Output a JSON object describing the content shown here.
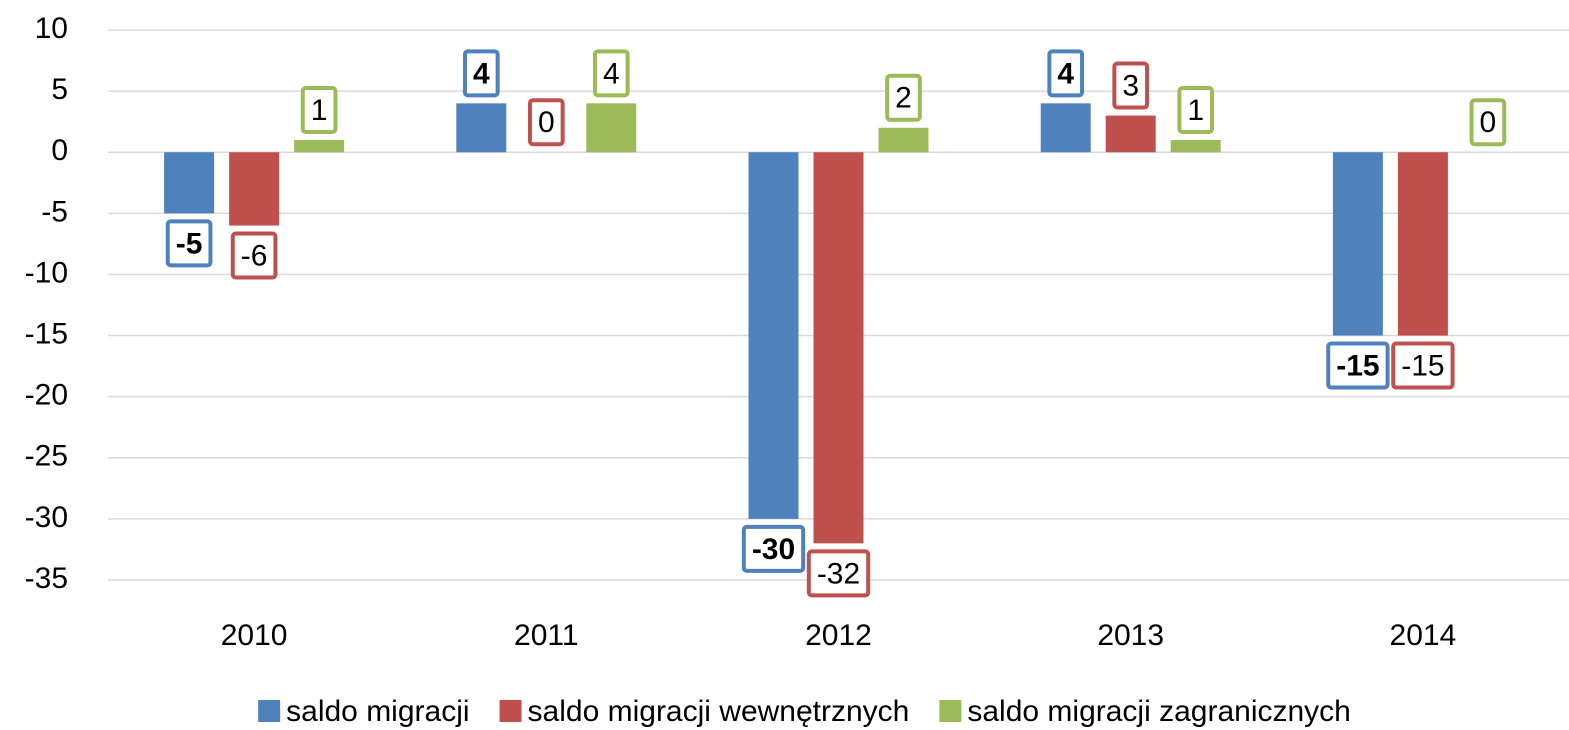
{
  "chart_data": {
    "type": "bar",
    "categories": [
      "2010",
      "2011",
      "2012",
      "2013",
      "2014"
    ],
    "series": [
      {
        "name": "saldo migracji",
        "color": "#4f81bd",
        "values": [
          -5,
          4,
          -30,
          4,
          -15
        ]
      },
      {
        "name": "saldo migracji wewnętrznych",
        "color": "#c0504d",
        "values": [
          -6,
          0,
          -32,
          3,
          -15
        ]
      },
      {
        "name": "saldo migracji zagranicznych",
        "color": "#9bbb59",
        "values": [
          1,
          4,
          2,
          1,
          0
        ]
      }
    ],
    "ylim": [
      -35,
      10
    ],
    "yticks": [
      -35,
      -30,
      -25,
      -20,
      -15,
      -10,
      -5,
      0,
      5,
      10
    ],
    "grid": true,
    "legend": "bottom"
  }
}
